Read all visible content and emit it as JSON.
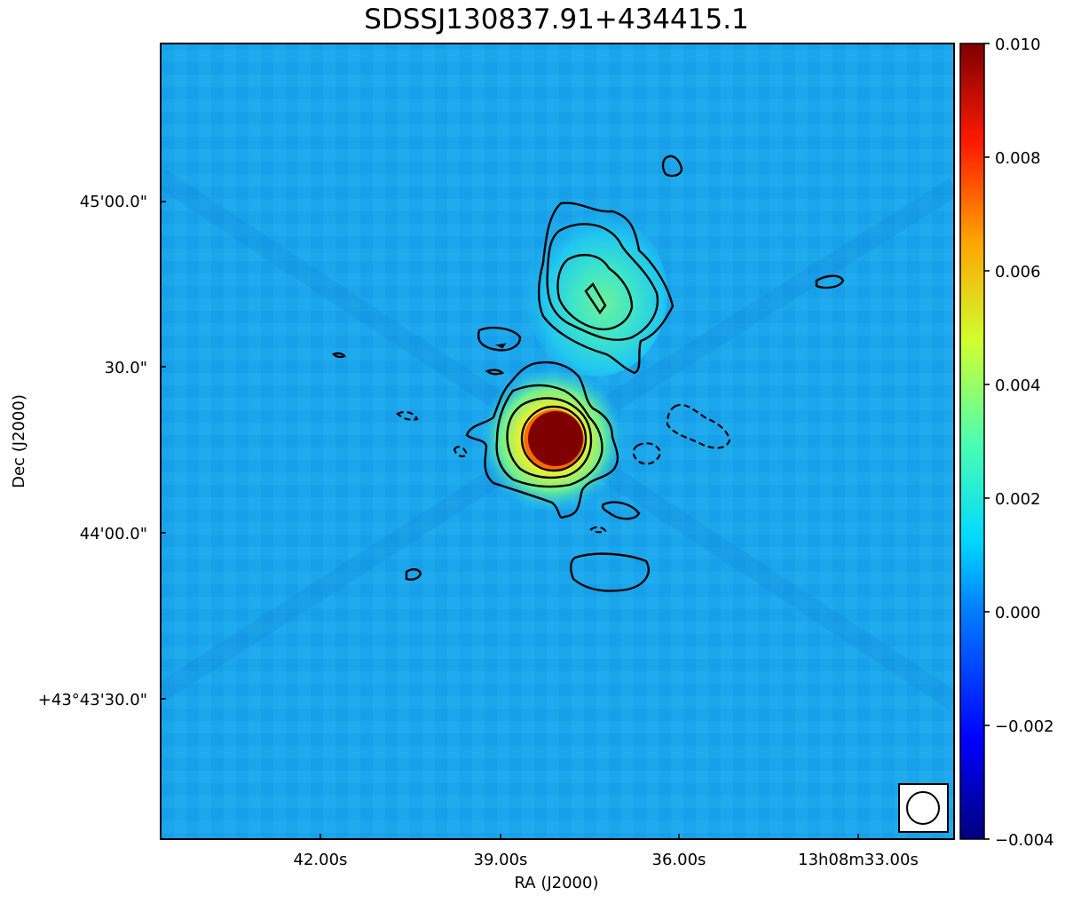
{
  "chart_data": {
    "type": "heatmap",
    "title": "SDSSJ130837.91+434415.1",
    "xlabel": "RA (J2000)",
    "ylabel": "Dec (J2000)",
    "x_tick_labels": [
      "42.00s",
      "39.00s",
      "36.00s",
      "13h08m33.00s"
    ],
    "y_tick_labels": [
      "45'00.0\"",
      "30.0\"",
      "44'00.0\"",
      "+43°43'30.0\""
    ],
    "colorbar": {
      "colormap": "jet",
      "range": [
        -0.004,
        0.01
      ],
      "tick_values": [
        0.01,
        0.008,
        0.006,
        0.004,
        0.002,
        0.0,
        -0.002,
        -0.004
      ],
      "tick_labels": [
        "0.010",
        "0.008",
        "0.006",
        "0.004",
        "0.002",
        "0.000",
        "−0.002",
        "−0.004"
      ]
    },
    "sources": [
      {
        "name": "core",
        "peak": 0.01,
        "shape": "compact, saturated"
      },
      {
        "name": "northern lobe",
        "peak": 0.003,
        "shape": "extended"
      }
    ],
    "beam": "circle, lower-right corner",
    "contours": {
      "positive": "solid black",
      "negative": "dashed black"
    }
  }
}
